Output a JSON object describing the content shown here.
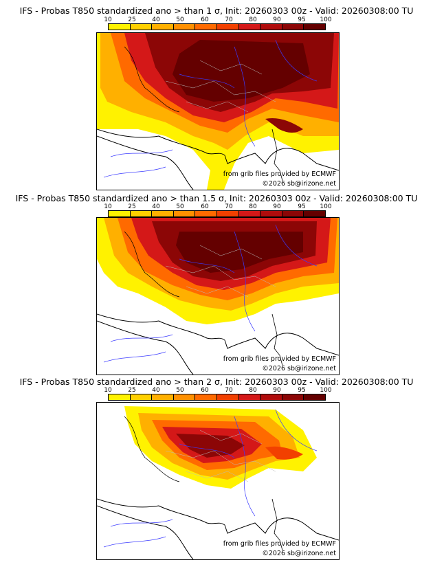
{
  "colors": {
    "scale": [
      "#fff200",
      "#ffd000",
      "#ffb000",
      "#ff9000",
      "#ff6a00",
      "#f24000",
      "#d41818",
      "#b00c0c",
      "#8c0606",
      "#640000"
    ],
    "sea": "#ffffff",
    "coast": "#000000",
    "rivers": "#3a3aff",
    "borders": "#bbbbbb"
  },
  "scale_labels": [
    "10",
    "25",
    "40",
    "50",
    "60",
    "70",
    "80",
    "90",
    "95",
    "100"
  ],
  "panels": [
    {
      "title": "IFS - Probas T850  standardized ano > than 1 σ, Init: 20260303 00z - Valid: 20260308:00 TU",
      "threshold_sigma": 1,
      "credit_source": "from grib files provided by ECMWF",
      "credit_copyright": "©2026 sb@irizone.net"
    },
    {
      "title": "IFS - Probas T850  standardized ano > than 1.5 σ, Init: 20260303 00z - Valid: 20260308:00 TU",
      "threshold_sigma": 1.5,
      "credit_source": "from grib files provided by ECMWF",
      "credit_copyright": "©2026 sb@irizone.net"
    },
    {
      "title": "IFS - Probas T850  standardized ano > than 2 σ, Init: 20260303 00z - Valid: 20260308:00 TU",
      "threshold_sigma": 2,
      "credit_source": "from grib files provided by ECMWF",
      "credit_copyright": "©2026 sb@irizone.net"
    }
  ]
}
